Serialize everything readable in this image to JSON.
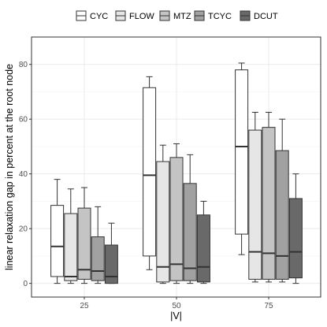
{
  "chart_data": {
    "type": "boxplot",
    "xlabel": "|V|",
    "ylabel": "linear relaxation gap in percent at the root node",
    "categories": [
      "25",
      "50",
      "75"
    ],
    "ylim": [
      -5,
      90
    ],
    "yticks": [
      0,
      20,
      40,
      60,
      80
    ],
    "grid": true,
    "legend_position": "top",
    "series": [
      {
        "name": "CYC",
        "color": "#ffffff",
        "boxes": [
          {
            "whisker_low": 0.0,
            "q1": 2.5,
            "median": 13.5,
            "q3": 28.5,
            "whisker_high": 38.0
          },
          {
            "whisker_low": 5.0,
            "q1": 10.0,
            "median": 39.5,
            "q3": 71.5,
            "whisker_high": 75.5
          },
          {
            "whisker_low": 10.5,
            "q1": 18.0,
            "median": 50.0,
            "q3": 78.0,
            "whisker_high": 80.5
          }
        ]
      },
      {
        "name": "FLOW",
        "color": "#e6e6e6",
        "boxes": [
          {
            "whisker_low": 0.0,
            "q1": 1.0,
            "median": 2.5,
            "q3": 25.5,
            "whisker_high": 34.5
          },
          {
            "whisker_low": 0.0,
            "q1": 0.5,
            "median": 6.0,
            "q3": 44.5,
            "whisker_high": 50.5
          },
          {
            "whisker_low": 0.5,
            "q1": 1.5,
            "median": 11.5,
            "q3": 56.0,
            "whisker_high": 62.5
          }
        ]
      },
      {
        "name": "MTZ",
        "color": "#c4c4c4",
        "boxes": [
          {
            "whisker_low": 0.0,
            "q1": 1.5,
            "median": 5.0,
            "q3": 27.5,
            "whisker_high": 35.0
          },
          {
            "whisker_low": 0.0,
            "q1": 1.0,
            "median": 7.0,
            "q3": 46.0,
            "whisker_high": 51.0
          },
          {
            "whisker_low": 0.5,
            "q1": 1.5,
            "median": 11.0,
            "q3": 57.0,
            "whisker_high": 62.5
          }
        ]
      },
      {
        "name": "TCYC",
        "color": "#a1a1a1",
        "boxes": [
          {
            "whisker_low": 0.0,
            "q1": 1.0,
            "median": 4.5,
            "q3": 17.0,
            "whisker_high": 28.0
          },
          {
            "whisker_low": 0.0,
            "q1": 1.0,
            "median": 5.5,
            "q3": 36.5,
            "whisker_high": 47.0
          },
          {
            "whisker_low": 0.5,
            "q1": 1.5,
            "median": 10.0,
            "q3": 48.5,
            "whisker_high": 60.0
          }
        ]
      },
      {
        "name": "DCUT",
        "color": "#696969",
        "boxes": [
          {
            "whisker_low": 0.0,
            "q1": 0.0,
            "median": 2.5,
            "q3": 14.0,
            "whisker_high": 22.0
          },
          {
            "whisker_low": 0.0,
            "q1": 0.5,
            "median": 6.0,
            "q3": 25.0,
            "whisker_high": 30.0
          },
          {
            "whisker_low": 0.0,
            "q1": 2.0,
            "median": 11.5,
            "q3": 31.0,
            "whisker_high": 40.0
          }
        ]
      }
    ]
  }
}
